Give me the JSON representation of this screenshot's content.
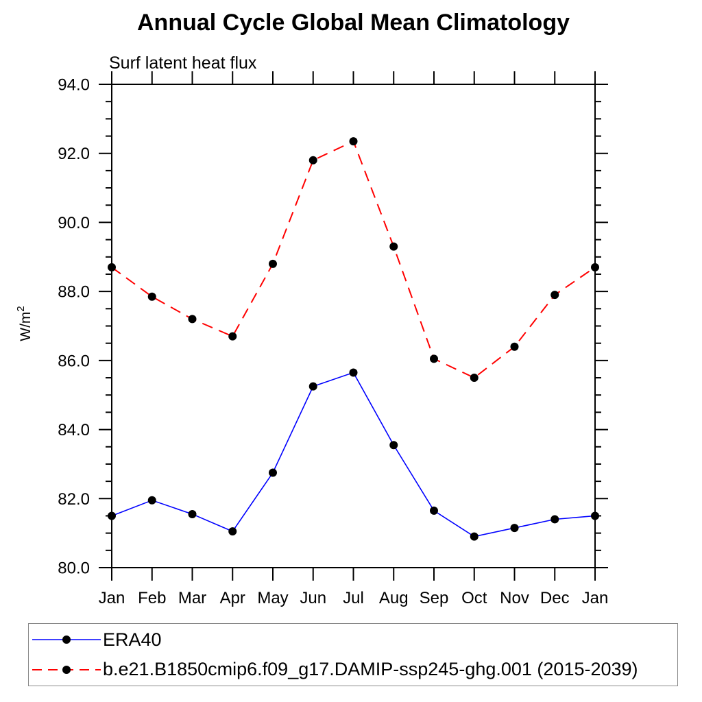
{
  "chart_data": {
    "type": "line",
    "title": "Annual Cycle Global Mean Climatology",
    "subtitle": "Surf latent heat flux",
    "ylabel_base": "W/m",
    "ylabel_sup": "2",
    "ylim": [
      80.0,
      94.0
    ],
    "ytick_major": 2.0,
    "ytick_minor": 0.5,
    "ytick_label_format": "one-decimal",
    "grid": false,
    "legend_position": "bottom-left-box",
    "categories": [
      "Jan",
      "Feb",
      "Mar",
      "Apr",
      "May",
      "Jun",
      "Jul",
      "Aug",
      "Sep",
      "Oct",
      "Nov",
      "Dec",
      "Jan"
    ],
    "series": [
      {
        "name": "ERA40",
        "color": "#0000ff",
        "line_style": "solid",
        "line_width": 1.6,
        "marker": "filled-circle",
        "marker_color": "#000000",
        "values": [
          81.5,
          81.95,
          81.55,
          81.05,
          82.75,
          85.25,
          85.65,
          83.55,
          81.65,
          80.9,
          81.15,
          81.4,
          81.5
        ]
      },
      {
        "name": "b.e21.B1850cmip6.f09_g17.DAMIP-ssp245-ghg.001 (2015-2039)",
        "color": "#ff0000",
        "line_style": "dashed",
        "line_width": 2,
        "marker": "filled-circle",
        "marker_color": "#000000",
        "values": [
          88.7,
          87.85,
          87.2,
          86.7,
          88.8,
          91.8,
          92.35,
          89.3,
          86.05,
          85.5,
          86.4,
          87.9,
          88.7
        ]
      }
    ]
  },
  "colors": {
    "axis": "#000000",
    "text": "#000000",
    "background": "#ffffff",
    "legend_border": "#888888"
  }
}
